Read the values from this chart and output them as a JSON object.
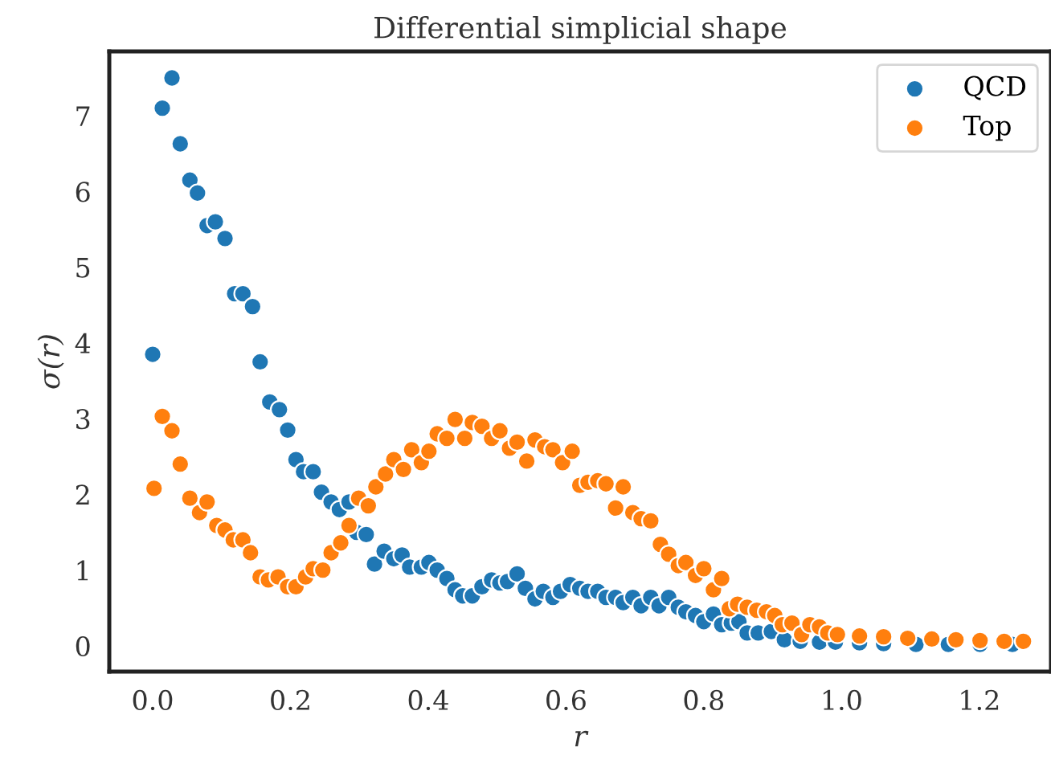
{
  "chart_data": {
    "type": "scatter",
    "title": "Differential simplicial shape",
    "xlabel": "r",
    "ylabel": "σ(r)",
    "xlim": [
      -0.063,
      1.304
    ],
    "ylim": [
      -0.34,
      7.85
    ],
    "xticks": [
      {
        "value": 0,
        "label": "0.0"
      },
      0.2,
      0.4,
      0.6,
      0.8,
      {
        "value": 1,
        "label": "1.0"
      },
      1.2
    ],
    "yticks": [
      0,
      1,
      2,
      3,
      4,
      5,
      6,
      7
    ],
    "grid": false,
    "legend": "top right",
    "marker": "circle",
    "series": [
      {
        "name": "QCD",
        "color": "#1f77b4",
        "x": [
          0,
          0.014,
          0.028,
          0.04,
          0.054,
          0.065,
          0.079,
          0.091,
          0.105,
          0.119,
          0.131,
          0.145,
          0.156,
          0.17,
          0.184,
          0.196,
          0.208,
          0.219,
          0.233,
          0.245,
          0.259,
          0.271,
          0.285,
          0.296,
          0.31,
          0.322,
          0.336,
          0.35,
          0.362,
          0.373,
          0.39,
          0.401,
          0.413,
          0.427,
          0.439,
          0.45,
          0.464,
          0.478,
          0.492,
          0.504,
          0.515,
          0.529,
          0.541,
          0.555,
          0.567,
          0.581,
          0.592,
          0.606,
          0.62,
          0.632,
          0.646,
          0.658,
          0.672,
          0.683,
          0.697,
          0.709,
          0.723,
          0.735,
          0.749,
          0.763,
          0.774,
          0.788,
          0.8,
          0.814,
          0.826,
          0.84,
          0.851,
          0.863,
          0.879,
          0.898,
          0.917,
          0.94,
          0.968,
          0.991,
          1.026,
          1.061,
          1.108,
          1.155,
          1.201,
          1.248
        ],
        "values": [
          3.85,
          7.1,
          7.5,
          6.63,
          6.15,
          5.98,
          5.55,
          5.6,
          5.38,
          4.65,
          4.65,
          4.48,
          3.75,
          3.22,
          3.12,
          2.85,
          2.46,
          2.3,
          2.3,
          2.03,
          1.9,
          1.8,
          1.9,
          1.5,
          1.47,
          1.08,
          1.25,
          1.15,
          1.2,
          1.04,
          1.04,
          1.1,
          1.0,
          0.89,
          0.74,
          0.66,
          0.66,
          0.78,
          0.87,
          0.83,
          0.85,
          0.95,
          0.76,
          0.62,
          0.72,
          0.64,
          0.72,
          0.81,
          0.76,
          0.72,
          0.72,
          0.64,
          0.64,
          0.57,
          0.64,
          0.53,
          0.64,
          0.53,
          0.64,
          0.51,
          0.45,
          0.4,
          0.32,
          0.42,
          0.28,
          0.3,
          0.32,
          0.17,
          0.17,
          0.19,
          0.08,
          0.06,
          0.05,
          0.05,
          0.04,
          0.03,
          0.02,
          0.02,
          0.02,
          0.02
        ]
      },
      {
        "name": "Top",
        "color": "#ff7f0e",
        "x": [
          0.002,
          0.014,
          0.028,
          0.04,
          0.054,
          0.068,
          0.079,
          0.093,
          0.105,
          0.117,
          0.131,
          0.142,
          0.156,
          0.168,
          0.182,
          0.196,
          0.208,
          0.222,
          0.233,
          0.247,
          0.259,
          0.273,
          0.285,
          0.299,
          0.313,
          0.324,
          0.338,
          0.35,
          0.364,
          0.376,
          0.39,
          0.401,
          0.413,
          0.427,
          0.439,
          0.453,
          0.464,
          0.478,
          0.492,
          0.504,
          0.518,
          0.529,
          0.543,
          0.555,
          0.569,
          0.581,
          0.595,
          0.609,
          0.62,
          0.632,
          0.646,
          0.658,
          0.672,
          0.683,
          0.697,
          0.709,
          0.723,
          0.737,
          0.749,
          0.763,
          0.774,
          0.788,
          0.8,
          0.814,
          0.826,
          0.837,
          0.849,
          0.863,
          0.877,
          0.891,
          0.903,
          0.914,
          0.928,
          0.942,
          0.954,
          0.968,
          0.98,
          0.994,
          1.026,
          1.061,
          1.096,
          1.131,
          1.166,
          1.201,
          1.236,
          1.264
        ],
        "values": [
          2.08,
          3.03,
          2.84,
          2.4,
          1.95,
          1.76,
          1.9,
          1.59,
          1.53,
          1.4,
          1.4,
          1.23,
          0.91,
          0.87,
          0.91,
          0.78,
          0.78,
          0.91,
          1.02,
          1.0,
          1.23,
          1.36,
          1.59,
          1.95,
          1.85,
          2.1,
          2.27,
          2.46,
          2.33,
          2.59,
          2.42,
          2.57,
          2.8,
          2.74,
          2.99,
          2.74,
          2.95,
          2.9,
          2.74,
          2.84,
          2.61,
          2.69,
          2.44,
          2.72,
          2.63,
          2.59,
          2.42,
          2.57,
          2.12,
          2.16,
          2.18,
          2.14,
          1.82,
          2.1,
          1.76,
          1.68,
          1.65,
          1.34,
          1.21,
          1.06,
          1.1,
          0.93,
          1.02,
          0.74,
          0.89,
          0.49,
          0.55,
          0.51,
          0.47,
          0.45,
          0.4,
          0.28,
          0.3,
          0.15,
          0.28,
          0.25,
          0.17,
          0.15,
          0.13,
          0.12,
          0.1,
          0.09,
          0.08,
          0.07,
          0.06,
          0.06
        ]
      }
    ]
  }
}
